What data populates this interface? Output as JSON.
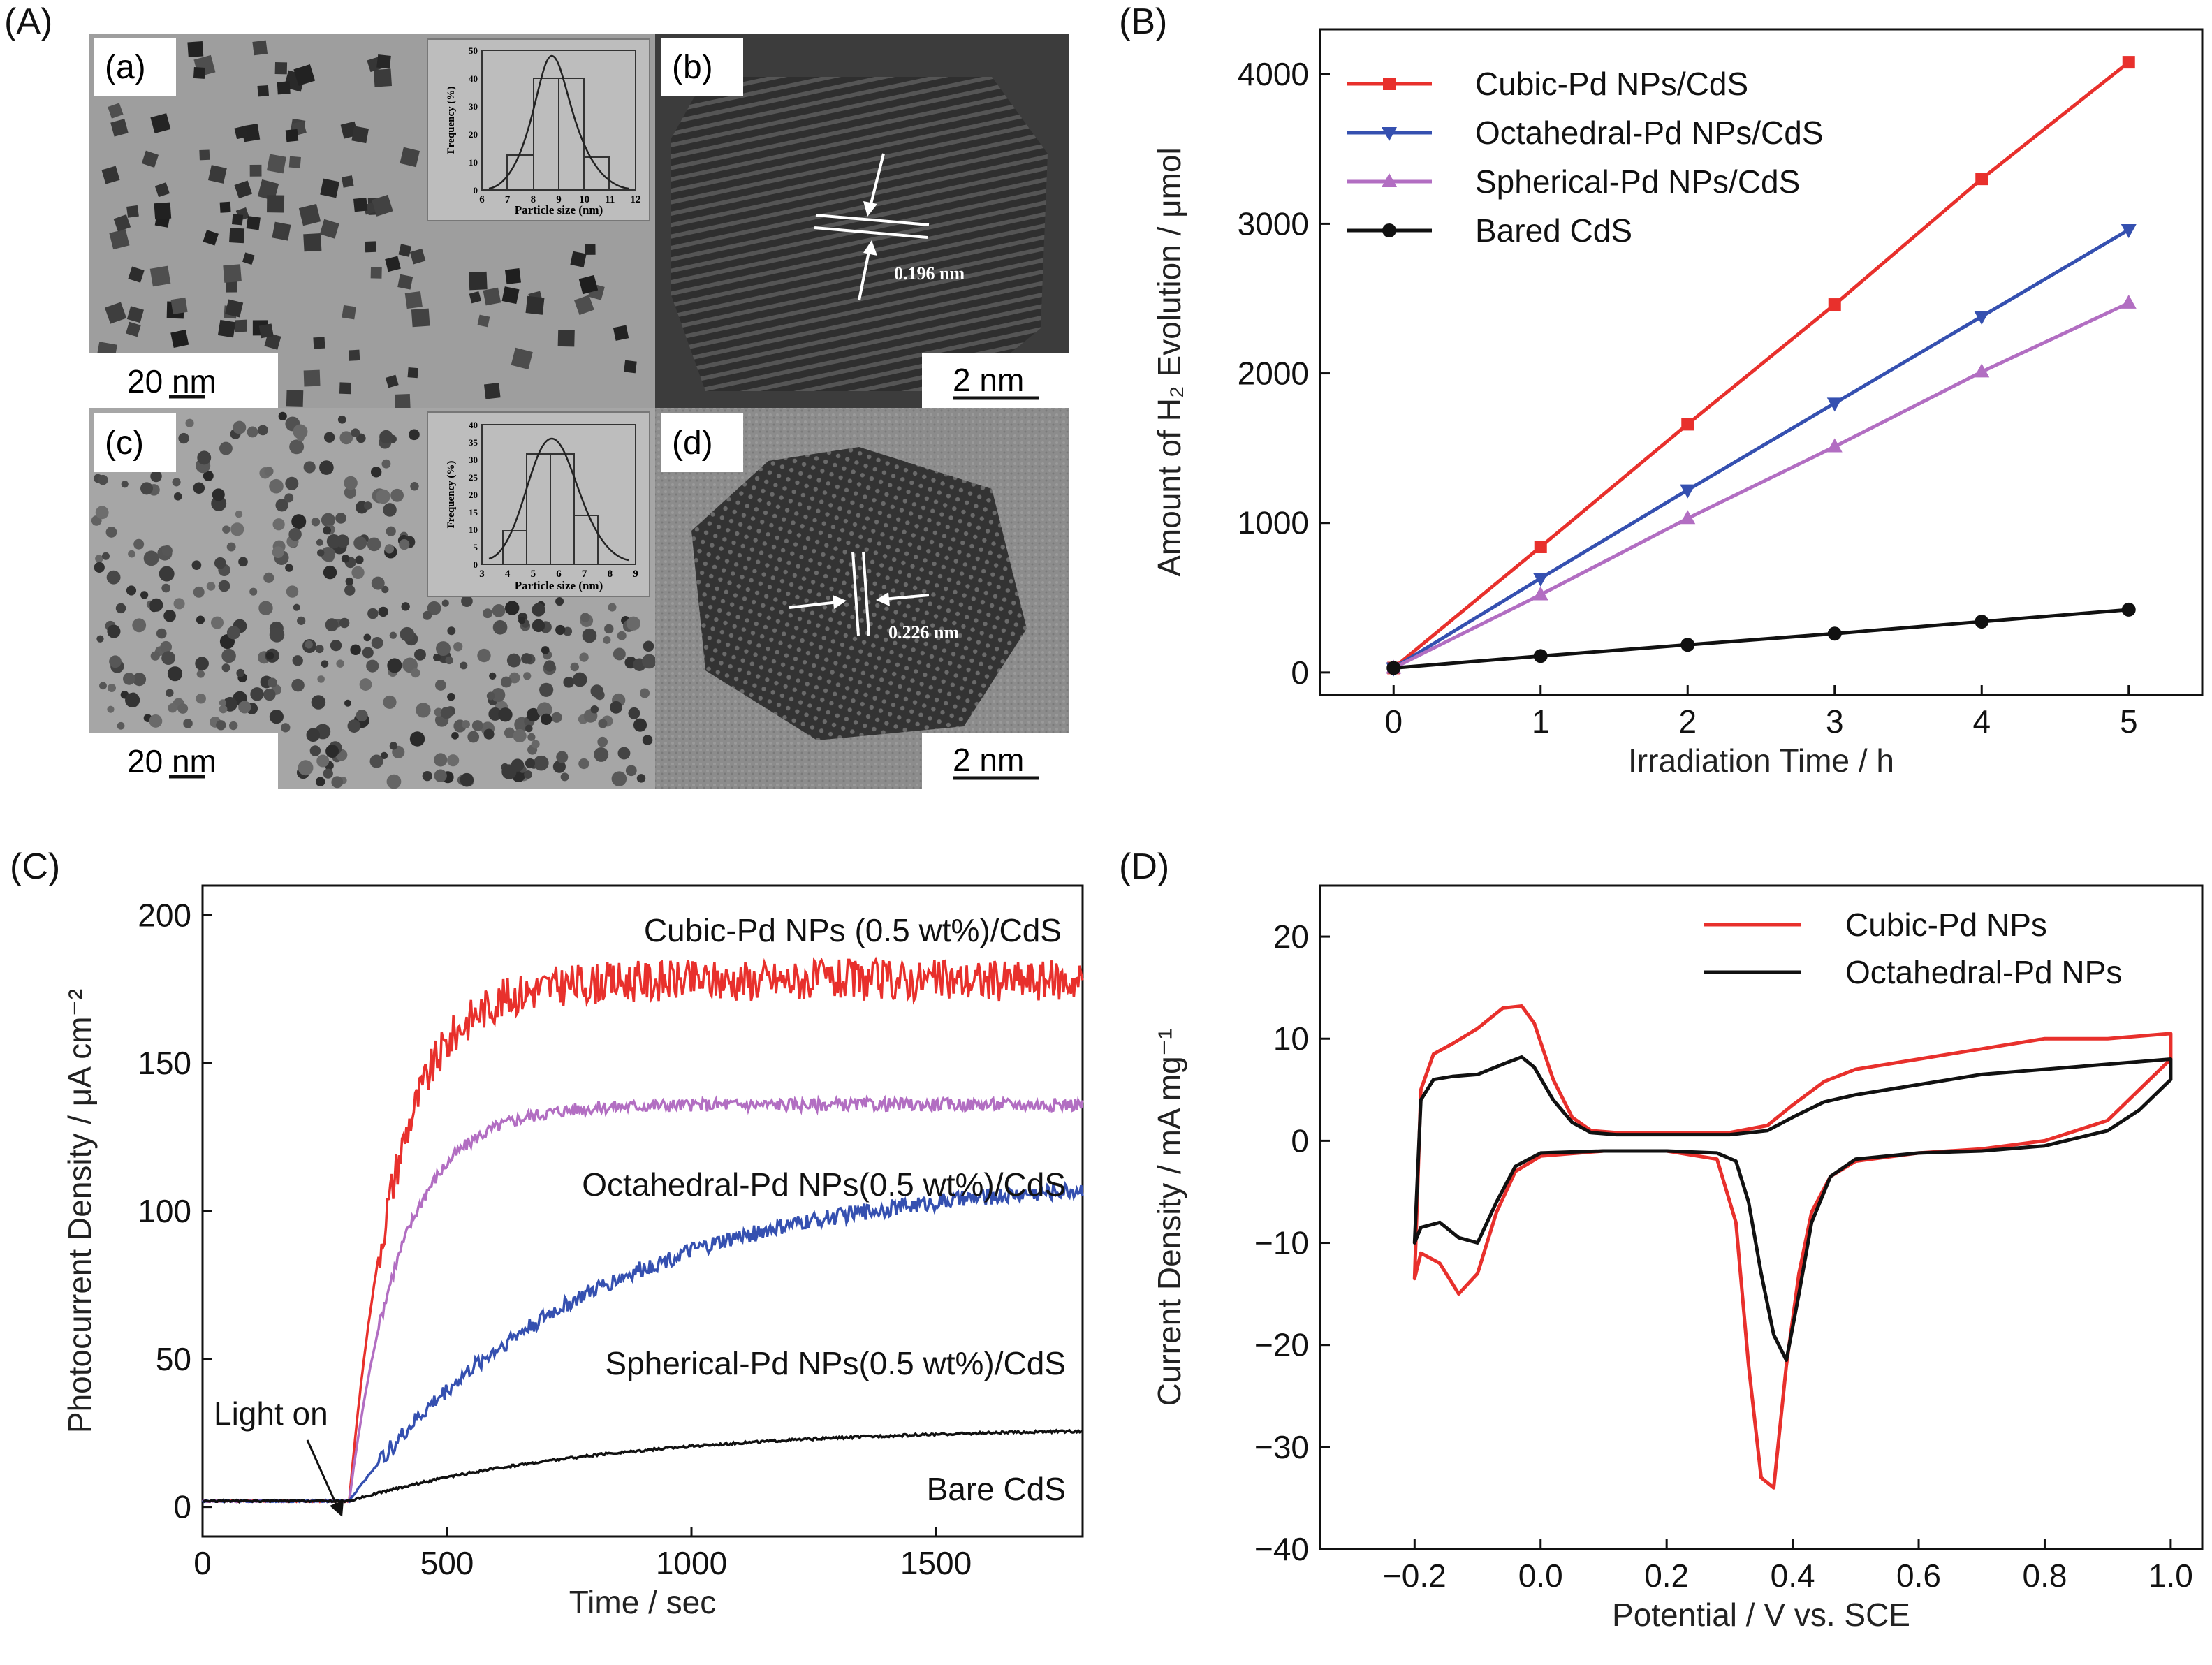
{
  "colors": {
    "red": "#e8302c",
    "blue": "#3550b0",
    "purple": "#b26ec2",
    "black": "#111111"
  },
  "panelA": {
    "letter": "(A)",
    "tiles": [
      {
        "sub": "(a)",
        "scale": "20 nm",
        "inset_xlabel": "Particle size (nm)",
        "inset_ylabel": "Frequency (%)",
        "inset_xticks": [
          "6",
          "7",
          "8",
          "9",
          "10",
          "11",
          "12"
        ],
        "inset_yticks": [
          "0",
          "10",
          "20",
          "30",
          "40",
          "50"
        ]
      },
      {
        "sub": "(b)",
        "scale": "2 nm",
        "spacing": "0.196 nm"
      },
      {
        "sub": "(c)",
        "scale": "20 nm",
        "inset_xlabel": "Particle size (nm)",
        "inset_ylabel": "Frequency (%)",
        "inset_xticks": [
          "3",
          "4",
          "5",
          "6",
          "7",
          "8",
          "9"
        ],
        "inset_yticks": [
          "0",
          "5",
          "10",
          "15",
          "20",
          "25",
          "30",
          "35",
          "40"
        ]
      },
      {
        "sub": "(d)",
        "scale": "2 nm",
        "spacing": "0.226 nm"
      }
    ]
  },
  "chart_data": [
    {
      "panel": "(B)",
      "type": "line",
      "xlabel": "Irradiation Time / h",
      "ylabel": "Amount of H₂ Evolution / μmol",
      "xlim": [
        -0.5,
        5.5
      ],
      "ylim": [
        -150,
        4300
      ],
      "xticks": [
        0,
        1,
        2,
        3,
        4,
        5
      ],
      "yticks": [
        0,
        1000,
        2000,
        3000,
        4000
      ],
      "x": [
        0,
        1,
        2,
        3,
        4,
        5
      ],
      "legend_position": "top-left",
      "series": [
        {
          "name": "Cubic-Pd NPs/CdS",
          "color": "#e8302c",
          "marker": "square",
          "values": [
            30,
            840,
            1660,
            2460,
            3300,
            4080
          ]
        },
        {
          "name": "Octahedral-Pd NPs/CdS",
          "color": "#3550b0",
          "marker": "triangle-down",
          "values": [
            30,
            630,
            1220,
            1800,
            2380,
            2960
          ]
        },
        {
          "name": "Spherical-Pd NPs/CdS",
          "color": "#b26ec2",
          "marker": "triangle-up",
          "values": [
            30,
            520,
            1030,
            1510,
            2010,
            2470
          ]
        },
        {
          "name": "Bared CdS",
          "color": "#111111",
          "marker": "circle",
          "values": [
            30,
            110,
            185,
            260,
            340,
            420
          ]
        }
      ]
    },
    {
      "panel": "(C)",
      "type": "line",
      "xlabel": "Time / sec",
      "ylabel": "Photocurrent Density / μA cm⁻²",
      "xlim": [
        0,
        1800
      ],
      "ylim": [
        -10,
        210
      ],
      "xticks": [
        0,
        500,
        1000,
        1500
      ],
      "yticks": [
        0,
        50,
        100,
        150,
        200
      ],
      "annotation": "Light on",
      "light_on_time": 300,
      "series": [
        {
          "name": "Cubic-Pd NPs (0.5 wt%)/CdS",
          "color": "#e8302c",
          "baseline": 2,
          "onset": 300,
          "plateau": 178,
          "tau": 95,
          "noise": 7
        },
        {
          "name": "Octahedral-Pd NPs(0.5 wt%)/CdS",
          "color": "#b26ec2",
          "baseline": 2,
          "onset": 300,
          "plateau": 136,
          "tau": 105,
          "noise": 2.2
        },
        {
          "name": "Spherical-Pd NPs(0.5 wt%)/CdS",
          "color": "#3550b0",
          "baseline": 2,
          "onset": 300,
          "plateau": 112,
          "tau": 480,
          "noise": 2.8
        },
        {
          "name": "Bare CdS",
          "color": "#111111",
          "baseline": 2,
          "onset": 300,
          "plateau": 27,
          "tau": 520,
          "noise": 0.4
        }
      ]
    },
    {
      "panel": "(D)",
      "type": "line",
      "xlabel": "Potential / V vs. SCE",
      "ylabel": "Current Density / mA mg⁻¹",
      "xlim": [
        -0.35,
        1.05
      ],
      "ylim": [
        -40,
        25
      ],
      "xticks": [
        -0.2,
        0.0,
        0.2,
        0.4,
        0.6,
        0.8,
        1.0
      ],
      "xtick_labels": [
        "−0.2",
        "0.0",
        "0.2",
        "0.4",
        "0.6",
        "0.8",
        "1.0"
      ],
      "yticks": [
        -40,
        -30,
        -20,
        -10,
        0,
        10,
        20
      ],
      "ytick_labels": [
        "−40",
        "−30",
        "−20",
        "−10",
        "0",
        "10",
        "20"
      ],
      "legend_position": "top-right",
      "series": [
        {
          "name": "Cubic-Pd NPs",
          "color": "#e8302c",
          "x": [
            -0.2,
            -0.19,
            -0.17,
            -0.14,
            -0.1,
            -0.06,
            -0.03,
            -0.01,
            0.02,
            0.05,
            0.08,
            0.12,
            0.2,
            0.3,
            0.36,
            0.4,
            0.45,
            0.5,
            0.6,
            0.7,
            0.8,
            0.9,
            1.0,
            1.0,
            0.95,
            0.9,
            0.8,
            0.7,
            0.6,
            0.5,
            0.46,
            0.43,
            0.41,
            0.39,
            0.37,
            0.35,
            0.33,
            0.31,
            0.28,
            0.2,
            0.1,
            0.0,
            -0.04,
            -0.07,
            -0.1,
            -0.13,
            -0.16,
            -0.19,
            -0.2
          ],
          "y": [
            -13.5,
            5,
            8.5,
            9.5,
            11,
            13,
            13.2,
            11.5,
            6,
            2.3,
            1,
            0.8,
            0.8,
            0.8,
            1.5,
            3.5,
            5.8,
            7,
            8,
            9,
            10,
            10,
            10.5,
            8,
            5,
            2,
            0,
            -0.8,
            -1.2,
            -2,
            -3.5,
            -7,
            -13,
            -22,
            -34,
            -33,
            -22,
            -8,
            -1.8,
            -1,
            -1,
            -1.5,
            -3,
            -7,
            -13,
            -15,
            -12,
            -11,
            -13.5
          ]
        },
        {
          "name": "Octahedral-Pd NPs",
          "color": "#111111",
          "x": [
            -0.2,
            -0.19,
            -0.17,
            -0.14,
            -0.1,
            -0.06,
            -0.03,
            -0.01,
            0.02,
            0.05,
            0.08,
            0.12,
            0.2,
            0.3,
            0.36,
            0.4,
            0.45,
            0.5,
            0.6,
            0.7,
            0.8,
            0.9,
            1.0,
            1.0,
            0.95,
            0.9,
            0.8,
            0.7,
            0.6,
            0.5,
            0.46,
            0.43,
            0.41,
            0.39,
            0.37,
            0.35,
            0.33,
            0.31,
            0.28,
            0.2,
            0.1,
            0.0,
            -0.04,
            -0.07,
            -0.1,
            -0.13,
            -0.16,
            -0.19,
            -0.2
          ],
          "y": [
            -10,
            4,
            6,
            6.3,
            6.5,
            7.5,
            8.2,
            7.2,
            4,
            1.8,
            0.8,
            0.6,
            0.6,
            0.6,
            1,
            2.3,
            3.8,
            4.5,
            5.5,
            6.5,
            7,
            7.5,
            8,
            6,
            3,
            1,
            -0.5,
            -1,
            -1.2,
            -1.8,
            -3.5,
            -8,
            -15,
            -21.5,
            -19,
            -13,
            -6,
            -2,
            -1.2,
            -1,
            -1,
            -1.2,
            -2.5,
            -6,
            -10,
            -9.5,
            -8,
            -8.5,
            -10
          ]
        }
      ]
    }
  ],
  "panel_letters": {
    "B": "(B)",
    "C": "(C)",
    "D": "(D)"
  }
}
